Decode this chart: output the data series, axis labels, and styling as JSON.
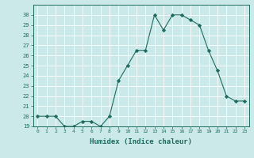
{
  "x": [
    0,
    1,
    2,
    3,
    4,
    5,
    6,
    7,
    8,
    9,
    10,
    11,
    12,
    13,
    14,
    15,
    16,
    17,
    18,
    19,
    20,
    21,
    22,
    23
  ],
  "y": [
    20,
    20,
    20,
    19,
    19,
    19.5,
    19.5,
    19,
    20,
    23.5,
    25,
    26.5,
    26.5,
    30,
    28.5,
    30,
    30,
    29.5,
    29,
    26.5,
    24.5,
    22,
    21.5,
    21.5
  ],
  "line_color": "#1c6b5e",
  "marker": "D",
  "marker_size": 2.2,
  "bg_color": "#cce9e9",
  "grid_color": "#b0d8d8",
  "tick_color": "#1c6b5e",
  "xlabel": "Humidex (Indice chaleur)",
  "xlabel_fontsize": 6.5,
  "ylim": [
    19,
    31
  ],
  "xlim": [
    -0.5,
    23.5
  ],
  "yticks": [
    19,
    20,
    21,
    22,
    23,
    24,
    25,
    26,
    27,
    28,
    29,
    30
  ],
  "xtick_labels": [
    "0",
    "1",
    "2",
    "3",
    "4",
    "5",
    "6",
    "7",
    "8",
    "9",
    "10",
    "11",
    "12",
    "13",
    "14",
    "15",
    "16",
    "17",
    "18",
    "19",
    "20",
    "21",
    "22",
    "23"
  ],
  "xticks": [
    0,
    1,
    2,
    3,
    4,
    5,
    6,
    7,
    8,
    9,
    10,
    11,
    12,
    13,
    14,
    15,
    16,
    17,
    18,
    19,
    20,
    21,
    22,
    23
  ]
}
